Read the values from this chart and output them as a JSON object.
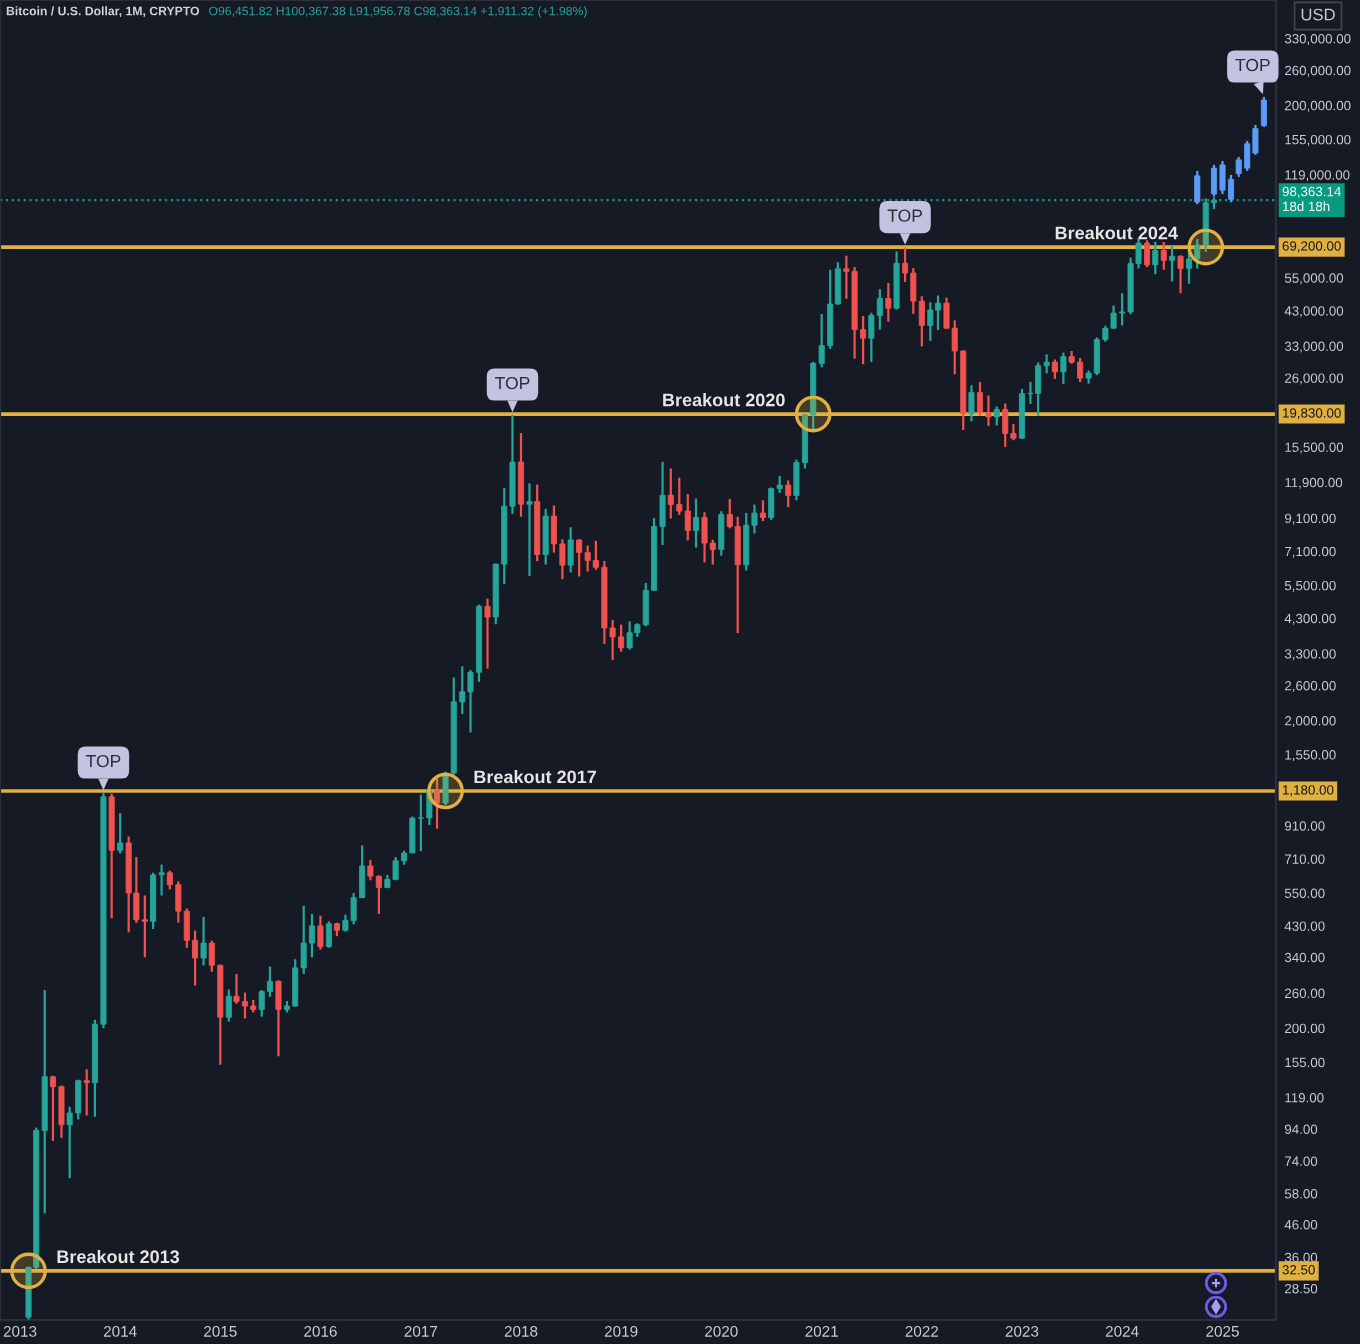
{
  "chart_data": {
    "type": "candlestick",
    "title": "Bitcoin / U.S. Dollar, 1M, CRYPTO",
    "subtitle": "O96,451.82 H100,367.38 L91,956.78 C98,363.14 +1,911.32 (+1.98%)",
    "ylabel": "USD",
    "log": true,
    "xlim": [
      "2012-10-20",
      "2025-07-15"
    ],
    "xticks": [
      "2013",
      "2014",
      "2015",
      "2016",
      "2017",
      "2018",
      "2019",
      "2020",
      "2021",
      "2022",
      "2023",
      "2024",
      "2025"
    ],
    "ylim": [
      22.5,
      440000
    ],
    "yticks": [
      {
        "value": 28.5,
        "label": "28.50"
      },
      {
        "value": 36,
        "label": "36.00"
      },
      {
        "value": 46,
        "label": "46.00"
      },
      {
        "value": 58,
        "label": "58.00"
      },
      {
        "value": 74,
        "label": "74.00"
      },
      {
        "value": 94,
        "label": "94.00"
      },
      {
        "value": 119,
        "label": "119.00"
      },
      {
        "value": 155,
        "label": "155.00"
      },
      {
        "value": 200,
        "label": "200.00"
      },
      {
        "value": 260,
        "label": "260.00"
      },
      {
        "value": 340,
        "label": "340.00"
      },
      {
        "value": 430,
        "label": "430.00"
      },
      {
        "value": 550,
        "label": "550.00"
      },
      {
        "value": 710,
        "label": "710.00"
      },
      {
        "value": 910,
        "label": "910.00"
      },
      {
        "value": 1550,
        "label": "1,550.00"
      },
      {
        "value": 2000,
        "label": "2,000.00"
      },
      {
        "value": 2600,
        "label": "2,600.00"
      },
      {
        "value": 3300,
        "label": "3,300.00"
      },
      {
        "value": 4300,
        "label": "4,300.00"
      },
      {
        "value": 5500,
        "label": "5,500.00"
      },
      {
        "value": 7100,
        "label": "7,100.00"
      },
      {
        "value": 9100,
        "label": "9,100.00"
      },
      {
        "value": 11900,
        "label": "11,900.00"
      },
      {
        "value": 15500,
        "label": "15,500.00"
      },
      {
        "value": 26000,
        "label": "26,000.00"
      },
      {
        "value": 33000,
        "label": "33,000.00"
      },
      {
        "value": 43000,
        "label": "43,000.00"
      },
      {
        "value": 55000,
        "label": "55,000.00"
      },
      {
        "value": 119000,
        "label": "119,000.00"
      },
      {
        "value": 155000,
        "label": "155,000.00"
      },
      {
        "value": 200000,
        "label": "200,000.00"
      },
      {
        "value": 260000,
        "label": "260,000.00"
      },
      {
        "value": 330000,
        "label": "330,000.00"
      }
    ],
    "series": [
      {
        "color": "#26a69a",
        "x": [
          "2013-02",
          "2013-03",
          "2013-04",
          "2013-07",
          "2013-08",
          "2013-10",
          "2013-11",
          "2014-01",
          "2014-05",
          "2014-06",
          "2014-11",
          "2015-02",
          "2015-06",
          "2015-07",
          "2015-09",
          "2015-10",
          "2015-11",
          "2015-12",
          "2016-02",
          "2016-04",
          "2016-05",
          "2016-06",
          "2016-09",
          "2016-10",
          "2016-11",
          "2016-12",
          "2017-01",
          "2017-02",
          "2017-04",
          "2017-05",
          "2017-06",
          "2017-07",
          "2017-08",
          "2017-10",
          "2017-11",
          "2017-12",
          "2018-02",
          "2018-04",
          "2018-07",
          "2019-02",
          "2019-03",
          "2019-04",
          "2019-05",
          "2019-06",
          "2019-10",
          "2020-01",
          "2020-04",
          "2020-05",
          "2020-07",
          "2020-08",
          "2020-10",
          "2020-11",
          "2020-12",
          "2021-01",
          "2021-02",
          "2021-03",
          "2021-07",
          "2021-08",
          "2021-10",
          "2022-02",
          "2022-03",
          "2022-07",
          "2022-10",
          "2023-01",
          "2023-02",
          "2023-03",
          "2023-04",
          "2023-06",
          "2023-09",
          "2023-10",
          "2023-11",
          "2023-12",
          "2024-01",
          "2024-02",
          "2024-03",
          "2024-05",
          "2024-07",
          "2024-09",
          "2024-10",
          "2024-11",
          "2024-12"
        ],
        "ohlc": [
          [
            23.0,
            33.5,
            22.6,
            33.4
          ],
          [
            33.4,
            95,
            33,
            93
          ],
          [
            93,
            266,
            50,
            139
          ],
          [
            97,
            111,
            65,
            106
          ],
          [
            106,
            136,
            101,
            135
          ],
          [
            133,
            213,
            103,
            206
          ],
          [
            206,
            1163,
            200,
            1130
          ],
          [
            757,
            1000,
            740,
            800
          ],
          [
            445,
            640,
            420,
            630
          ],
          [
            630,
            680,
            540,
            640
          ],
          [
            338,
            460,
            320,
            378
          ],
          [
            217,
            267,
            210,
            254
          ],
          [
            230,
            266,
            218,
            263
          ],
          [
            263,
            317,
            253,
            284
          ],
          [
            230,
            245,
            225,
            236
          ],
          [
            236,
            335,
            235,
            314
          ],
          [
            314,
            500,
            300,
            378
          ],
          [
            378,
            470,
            340,
            430
          ],
          [
            368,
            445,
            365,
            437
          ],
          [
            416,
            468,
            412,
            448
          ],
          [
            448,
            550,
            435,
            531
          ],
          [
            531,
            785,
            530,
            673
          ],
          [
            573,
            630,
            570,
            609
          ],
          [
            609,
            720,
            605,
            700
          ],
          [
            700,
            755,
            680,
            742
          ],
          [
            742,
            975,
            742,
            963
          ],
          [
            963,
            1150,
            752,
            965
          ],
          [
            965,
            1200,
            915,
            1190
          ],
          [
            1080,
            1365,
            1060,
            1350
          ],
          [
            1350,
            2760,
            1335,
            2300
          ],
          [
            2300,
            3000,
            2100,
            2480
          ],
          [
            2480,
            2920,
            1830,
            2870
          ],
          [
            2870,
            4760,
            2670,
            4700
          ],
          [
            4340,
            6470,
            4110,
            6450
          ],
          [
            6450,
            11400,
            5550,
            9950
          ],
          [
            9950,
            19700,
            9400,
            13850
          ],
          [
            10100,
            11800,
            5900,
            10300
          ],
          [
            6930,
            9750,
            6430,
            9240
          ],
          [
            6400,
            8500,
            6060,
            7730
          ],
          [
            3450,
            4200,
            3400,
            3860
          ],
          [
            3860,
            4140,
            3740,
            4100
          ],
          [
            4100,
            5600,
            4050,
            5300
          ],
          [
            5300,
            9100,
            5280,
            8550
          ],
          [
            8550,
            13880,
            7440,
            10800
          ],
          [
            8300,
            10540,
            7300,
            9150
          ],
          [
            7200,
            9580,
            6870,
            9350
          ],
          [
            6420,
            9460,
            6150,
            8630
          ],
          [
            8630,
            10070,
            8110,
            9450
          ],
          [
            9140,
            11450,
            8980,
            11350
          ],
          [
            11350,
            12480,
            10990,
            11650
          ],
          [
            10780,
            14100,
            10400,
            13800
          ],
          [
            13800,
            19850,
            13200,
            19700
          ],
          [
            19700,
            29300,
            17600,
            28990
          ],
          [
            28990,
            41950,
            28130,
            33100
          ],
          [
            33100,
            58350,
            32300,
            45200
          ],
          [
            45200,
            61780,
            45000,
            58800
          ],
          [
            35000,
            42300,
            29300,
            41500
          ],
          [
            41500,
            50500,
            37300,
            47100
          ],
          [
            43800,
            67000,
            43300,
            61300
          ],
          [
            38500,
            45800,
            34300,
            43200
          ],
          [
            43200,
            48200,
            37200,
            45500
          ],
          [
            19900,
            24600,
            18800,
            23300
          ],
          [
            19400,
            21000,
            18200,
            20500
          ],
          [
            16550,
            23950,
            16500,
            23100
          ],
          [
            23100,
            25250,
            21400,
            23150
          ],
          [
            23150,
            29200,
            19550,
            28500
          ],
          [
            28500,
            31000,
            26900,
            29250
          ],
          [
            27200,
            31400,
            24800,
            30500
          ],
          [
            25950,
            27500,
            24900,
            26950
          ],
          [
            26950,
            35200,
            26550,
            34650
          ],
          [
            34650,
            38400,
            34100,
            37700
          ],
          [
            37700,
            44700,
            37600,
            42250
          ],
          [
            42250,
            48970,
            38500,
            42600
          ],
          [
            42600,
            64000,
            41900,
            61200
          ],
          [
            61200,
            73800,
            59000,
            71300
          ],
          [
            60600,
            72000,
            56500,
            67500
          ],
          [
            62700,
            70000,
            53500,
            64600
          ],
          [
            59000,
            66500,
            52600,
            63300
          ],
          [
            63300,
            73600,
            58900,
            70300
          ],
          [
            70300,
            99600,
            66800,
            96450
          ],
          [
            96451.82,
            100367.38,
            91956.78,
            98363.14
          ]
        ]
      },
      {
        "color": "#ef5350",
        "x": [
          "2013-05",
          "2013-06",
          "2013-09",
          "2013-12",
          "2014-02",
          "2014-03",
          "2014-04",
          "2014-07",
          "2014-08",
          "2014-09",
          "2014-10",
          "2014-12",
          "2015-01",
          "2015-03",
          "2015-04",
          "2015-05",
          "2015-08",
          "2016-01",
          "2016-03",
          "2016-07",
          "2016-08",
          "2017-03",
          "2017-09",
          "2018-01",
          "2018-03",
          "2018-05",
          "2018-06",
          "2018-08",
          "2018-09",
          "2018-10",
          "2018-11",
          "2018-12",
          "2019-01",
          "2019-07",
          "2019-08",
          "2019-09",
          "2019-11",
          "2019-12",
          "2020-02",
          "2020-03",
          "2020-06",
          "2020-09",
          "2021-04",
          "2021-05",
          "2021-06",
          "2021-09",
          "2021-11",
          "2021-12",
          "2022-01",
          "2022-04",
          "2022-05",
          "2022-06",
          "2022-08",
          "2022-09",
          "2022-11",
          "2022-12",
          "2023-05",
          "2023-07",
          "2023-08",
          "2024-04",
          "2024-06",
          "2024-08"
        ],
        "ohlc": [
          [
            139,
            140,
            86,
            129
          ],
          [
            129,
            130,
            88,
            97
          ],
          [
            135,
            147,
            104,
            133
          ],
          [
            1130,
            1156,
            455,
            757
          ],
          [
            800,
            840,
            410,
            550
          ],
          [
            550,
            720,
            440,
            450
          ],
          [
            450,
            540,
            340,
            445
          ],
          [
            640,
            650,
            565,
            585
          ],
          [
            585,
            600,
            440,
            480
          ],
          [
            480,
            490,
            365,
            386
          ],
          [
            386,
            415,
            275,
            338
          ],
          [
            378,
            385,
            305,
            320
          ],
          [
            320,
            322,
            152,
            217
          ],
          [
            254,
            300,
            240,
            244
          ],
          [
            244,
            261,
            215,
            236
          ],
          [
            236,
            247,
            225,
            230
          ],
          [
            284,
            286,
            162,
            230
          ],
          [
            430,
            464,
            360,
            368
          ],
          [
            437,
            440,
            398,
            416
          ],
          [
            673,
            705,
            605,
            624
          ],
          [
            624,
            627,
            470,
            573
          ],
          [
            1190,
            1330,
            890,
            1080
          ],
          [
            4700,
            4980,
            2950,
            4340
          ],
          [
            13850,
            17200,
            9200,
            10100
          ],
          [
            10300,
            11700,
            6600,
            6930
          ],
          [
            9240,
            10000,
            7030,
            7500
          ],
          [
            7500,
            7770,
            5760,
            6400
          ],
          [
            7730,
            7760,
            5880,
            7030
          ],
          [
            7030,
            7410,
            6100,
            6630
          ],
          [
            6630,
            7680,
            6180,
            6300
          ],
          [
            6300,
            6600,
            3550,
            4000
          ],
          [
            4000,
            4240,
            3150,
            3740
          ],
          [
            3740,
            4100,
            3350,
            3450
          ],
          [
            10800,
            13200,
            9070,
            10080
          ],
          [
            10080,
            12320,
            9320,
            9600
          ],
          [
            9600,
            10900,
            7700,
            8300
          ],
          [
            9150,
            9510,
            6530,
            7550
          ],
          [
            7550,
            7740,
            6430,
            7200
          ],
          [
            9350,
            10500,
            8430,
            8550
          ],
          [
            8550,
            9190,
            3850,
            6420
          ],
          [
            9450,
            10400,
            8900,
            9140
          ],
          [
            11650,
            12070,
            9880,
            10780
          ],
          [
            58800,
            64900,
            47000,
            57700
          ],
          [
            57700,
            59600,
            30000,
            37300
          ],
          [
            37300,
            41300,
            28800,
            35000
          ],
          [
            47100,
            52900,
            39600,
            43800
          ],
          [
            61300,
            69000,
            53300,
            57000
          ],
          [
            57000,
            59100,
            42000,
            46200
          ],
          [
            46200,
            47900,
            32900,
            38500
          ],
          [
            45500,
            47400,
            37600,
            37700
          ],
          [
            37700,
            40000,
            26700,
            31800
          ],
          [
            31800,
            31900,
            17600,
            19900
          ],
          [
            23300,
            25200,
            19600,
            20050
          ],
          [
            20050,
            22800,
            18150,
            19400
          ],
          [
            20500,
            21450,
            15500,
            17150
          ],
          [
            17150,
            18400,
            16300,
            16550
          ],
          [
            29250,
            29850,
            25800,
            27200
          ],
          [
            30500,
            31800,
            28900,
            29250
          ],
          [
            29250,
            30200,
            25200,
            25950
          ],
          [
            71300,
            72800,
            59600,
            60600
          ],
          [
            67500,
            71900,
            58400,
            62700
          ],
          [
            64600,
            65100,
            49000,
            59000
          ]
        ]
      },
      {
        "color": "#5b9cf6",
        "x": [
          "2024-10",
          "2024-12",
          "2025-01",
          "2025-02",
          "2025-03",
          "2025-04",
          "2025-05",
          "2025-06"
        ],
        "ohlc": [
          [
            97000,
            122400,
            95400,
            118000
          ],
          [
            103000,
            128000,
            101000,
            125000
          ],
          [
            106000,
            131900,
            102900,
            128000
          ],
          [
            99000,
            118800,
            96800,
            115000
          ],
          [
            120000,
            135900,
            117000,
            133000
          ],
          [
            125000,
            153300,
            122400,
            150000
          ],
          [
            140000,
            172700,
            138000,
            168000
          ],
          [
            172000,
            213000,
            170100,
            208000
          ]
        ]
      }
    ],
    "ref_lines": [
      {
        "axis": "y",
        "value": 32.5,
        "label": "32.50",
        "color": "#e0b040"
      },
      {
        "axis": "y",
        "value": 1180,
        "label": "1,180.00",
        "color": "#e0b040"
      },
      {
        "axis": "y",
        "value": 19830,
        "label": "19,830.00",
        "color": "#e0b040"
      },
      {
        "axis": "y",
        "value": 69200,
        "label": "69,200.00",
        "color": "#e0b040"
      },
      {
        "axis": "y",
        "value": 98363.14,
        "label": "98,363.14\n18d 18h",
        "color": "#089981",
        "line_style": "dotted"
      }
    ],
    "annotations": [
      {
        "text": "Breakout 2013",
        "x": "2013-02",
        "y": 32.5
      },
      {
        "text": "Breakout 2017",
        "x": "2017-04",
        "y": 1180
      },
      {
        "text": "Breakout 2020",
        "x": "2020-12",
        "y": 19830
      },
      {
        "text": "Breakout 2024",
        "x": "2024-11",
        "y": 69200
      },
      {
        "text": "TOP",
        "x": "2013-11",
        "y": 1163
      },
      {
        "text": "TOP",
        "x": "2017-12",
        "y": 19700
      },
      {
        "text": "TOP",
        "x": "2021-11",
        "y": 69000
      },
      {
        "text": "TOP",
        "x": "2025-06",
        "y": 213000
      }
    ]
  }
}
